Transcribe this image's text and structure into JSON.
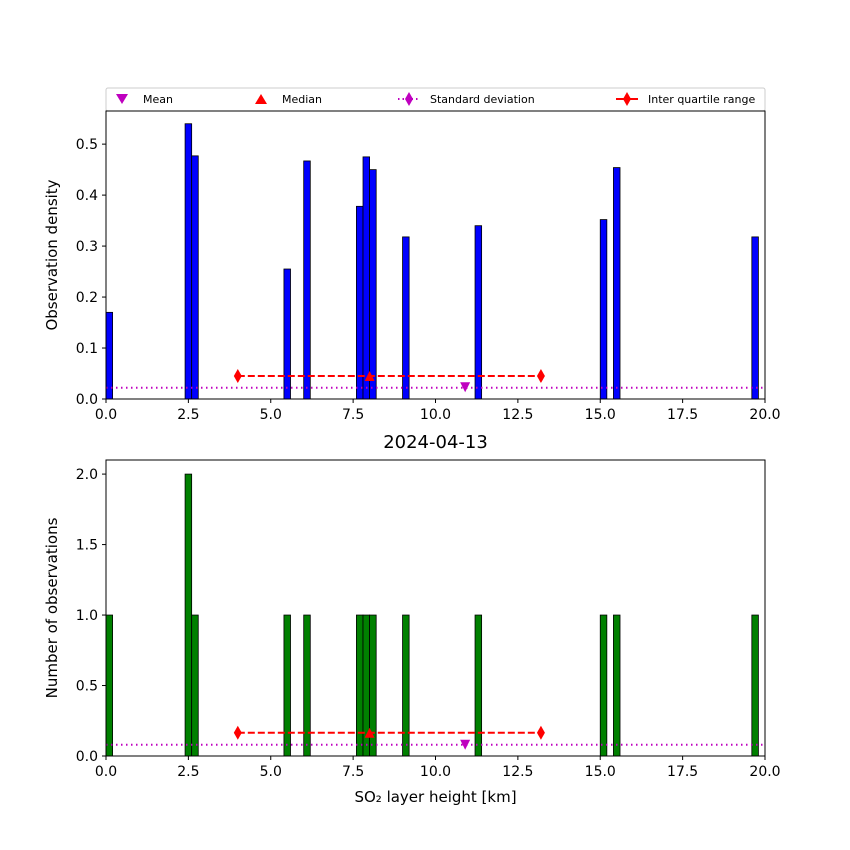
{
  "chart_data": [
    {
      "type": "bar",
      "title": "",
      "xlabel": "",
      "ylabel": "Observation density",
      "xlim": [
        0,
        20
      ],
      "ylim": [
        0,
        0.565
      ],
      "bar_color": "#0000ff",
      "bin_width": 0.2,
      "x_ticks": [
        0,
        2.5,
        5,
        7.5,
        10,
        12.5,
        15,
        17.5,
        20
      ],
      "x_tick_labels": [
        "0.0",
        "2.5",
        "5.0",
        "7.5",
        "10.0",
        "12.5",
        "15.0",
        "17.5",
        "20.0"
      ],
      "y_ticks": [
        0,
        0.1,
        0.2,
        0.3,
        0.4,
        0.5
      ],
      "y_tick_labels": [
        "0.0",
        "0.1",
        "0.2",
        "0.3",
        "0.4",
        "0.5"
      ],
      "bars": [
        {
          "x": 0.1,
          "value": 0.17
        },
        {
          "x": 2.5,
          "value": 0.54
        },
        {
          "x": 2.7,
          "value": 0.477
        },
        {
          "x": 5.5,
          "value": 0.255
        },
        {
          "x": 6.1,
          "value": 0.467
        },
        {
          "x": 7.7,
          "value": 0.378
        },
        {
          "x": 7.9,
          "value": 0.475
        },
        {
          "x": 8.1,
          "value": 0.45
        },
        {
          "x": 9.1,
          "value": 0.318
        },
        {
          "x": 11.3,
          "value": 0.34
        },
        {
          "x": 15.1,
          "value": 0.352
        },
        {
          "x": 15.5,
          "value": 0.454
        },
        {
          "x": 19.7,
          "value": 0.318
        }
      ],
      "stats": {
        "mean": {
          "x": 10.9,
          "y": 0.023
        },
        "median": {
          "x": 8.0,
          "y": 0.045
        },
        "std_dev_line": {
          "y": 0.022
        },
        "iqr": {
          "x": [
            4.0,
            13.2
          ],
          "y": 0.045
        }
      },
      "legend": {
        "placement": "top, above plot",
        "entries": [
          "Mean",
          "Median",
          "Standard deviation",
          "Inter quartile range"
        ]
      }
    },
    {
      "type": "bar",
      "title": "2024-04-13",
      "xlabel": "SO₂ layer height [km]",
      "ylabel": "Number of observations",
      "xlim": [
        0,
        20
      ],
      "ylim": [
        0,
        2.1
      ],
      "bar_color": "#008000",
      "bin_width": 0.2,
      "x_ticks": [
        0,
        2.5,
        5,
        7.5,
        10,
        12.5,
        15,
        17.5,
        20
      ],
      "x_tick_labels": [
        "0.0",
        "2.5",
        "5.0",
        "7.5",
        "10.0",
        "12.5",
        "15.0",
        "17.5",
        "20.0"
      ],
      "y_ticks": [
        0,
        0.5,
        1,
        1.5,
        2
      ],
      "y_tick_labels": [
        "0.0",
        "0.5",
        "1.0",
        "1.5",
        "2.0"
      ],
      "bars": [
        {
          "x": 0.1,
          "value": 1
        },
        {
          "x": 2.5,
          "value": 2
        },
        {
          "x": 2.7,
          "value": 1
        },
        {
          "x": 5.5,
          "value": 1
        },
        {
          "x": 6.1,
          "value": 1
        },
        {
          "x": 7.7,
          "value": 1
        },
        {
          "x": 7.9,
          "value": 1
        },
        {
          "x": 8.1,
          "value": 1
        },
        {
          "x": 9.1,
          "value": 1
        },
        {
          "x": 11.3,
          "value": 1
        },
        {
          "x": 15.1,
          "value": 1
        },
        {
          "x": 15.5,
          "value": 1
        },
        {
          "x": 19.7,
          "value": 1
        }
      ],
      "stats": {
        "mean": {
          "x": 10.9,
          "y": 0.08
        },
        "median": {
          "x": 8.0,
          "y": 0.165
        },
        "std_dev_line": {
          "y": 0.08
        },
        "iqr": {
          "x": [
            4.0,
            13.2
          ],
          "y": 0.165
        }
      }
    }
  ],
  "colors": {
    "mean": "#bf00bf",
    "median": "#ff0000",
    "std_dev": "#bf00bf",
    "iqr": "#ff0000"
  }
}
